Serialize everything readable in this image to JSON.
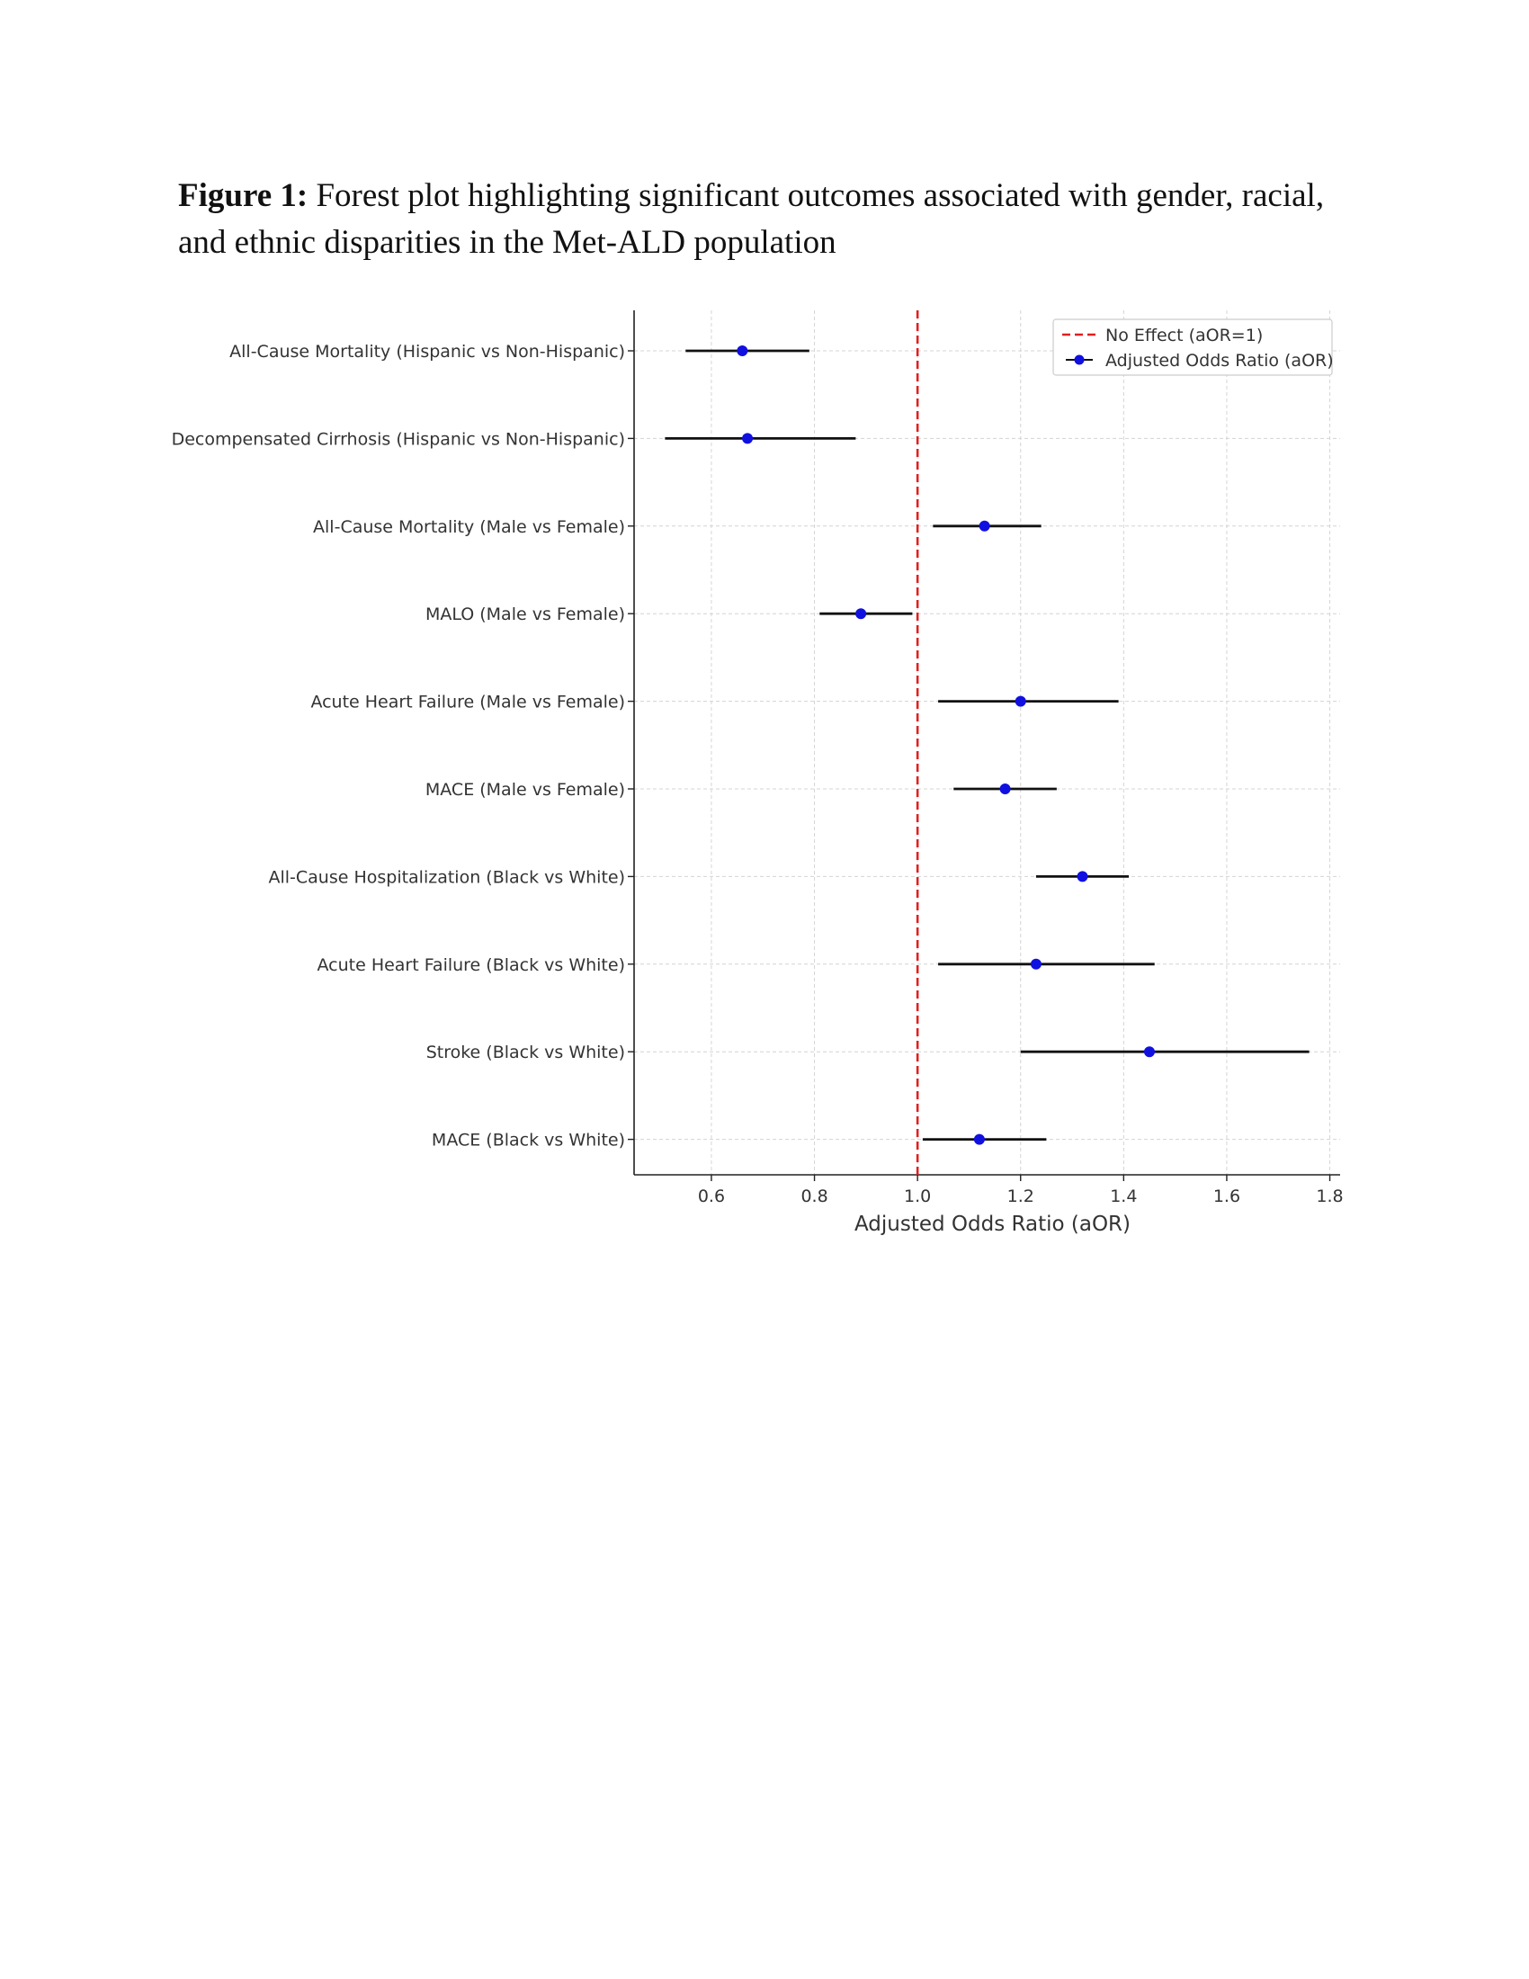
{
  "caption": {
    "label": "Figure 1:",
    "text": " Forest plot highlighting significant outcomes associated with gender, racial, and ethnic disparities in the Met-ALD population"
  },
  "chart_data": {
    "type": "forest",
    "title": "",
    "xlabel": "Adjusted Odds Ratio (aOR)",
    "ylabel": "",
    "xlim": [
      0.45,
      1.82
    ],
    "xticks": [
      0.6,
      0.8,
      1.0,
      1.2,
      1.4,
      1.6,
      1.8
    ],
    "xtick_labels": [
      "0.6",
      "0.8",
      "1.0",
      "1.2",
      "1.4",
      "1.6",
      "1.8"
    ],
    "grid": true,
    "reference_line": {
      "value": 1.0,
      "label": "No Effect (aOR=1)",
      "color": "#e02020",
      "style": "dashed"
    },
    "legend": {
      "placement": "top-right",
      "entries": [
        "No Effect (aOR=1)",
        "Adjusted Odds Ratio (aOR)"
      ]
    },
    "point_color": "#1010e0",
    "ci_color": "#111111",
    "rows": [
      {
        "label": "All-Cause Mortality (Hispanic vs Non-Hispanic)",
        "aor": 0.66,
        "lo": 0.55,
        "hi": 0.79
      },
      {
        "label": "Decompensated Cirrhosis (Hispanic vs Non-Hispanic)",
        "aor": 0.67,
        "lo": 0.51,
        "hi": 0.88
      },
      {
        "label": "All-Cause Mortality (Male vs Female)",
        "aor": 1.13,
        "lo": 1.03,
        "hi": 1.24
      },
      {
        "label": "MALO (Male vs Female)",
        "aor": 0.89,
        "lo": 0.81,
        "hi": 0.99
      },
      {
        "label": "Acute Heart Failure (Male vs Female)",
        "aor": 1.2,
        "lo": 1.04,
        "hi": 1.39
      },
      {
        "label": "MACE (Male vs Female)",
        "aor": 1.17,
        "lo": 1.07,
        "hi": 1.27
      },
      {
        "label": "All-Cause Hospitalization (Black vs White)",
        "aor": 1.32,
        "lo": 1.23,
        "hi": 1.41
      },
      {
        "label": "Acute Heart Failure (Black vs White)",
        "aor": 1.23,
        "lo": 1.04,
        "hi": 1.46
      },
      {
        "label": "Stroke (Black vs White)",
        "aor": 1.45,
        "lo": 1.2,
        "hi": 1.76
      },
      {
        "label": "MACE (Black vs White)",
        "aor": 1.12,
        "lo": 1.01,
        "hi": 1.25
      }
    ]
  }
}
